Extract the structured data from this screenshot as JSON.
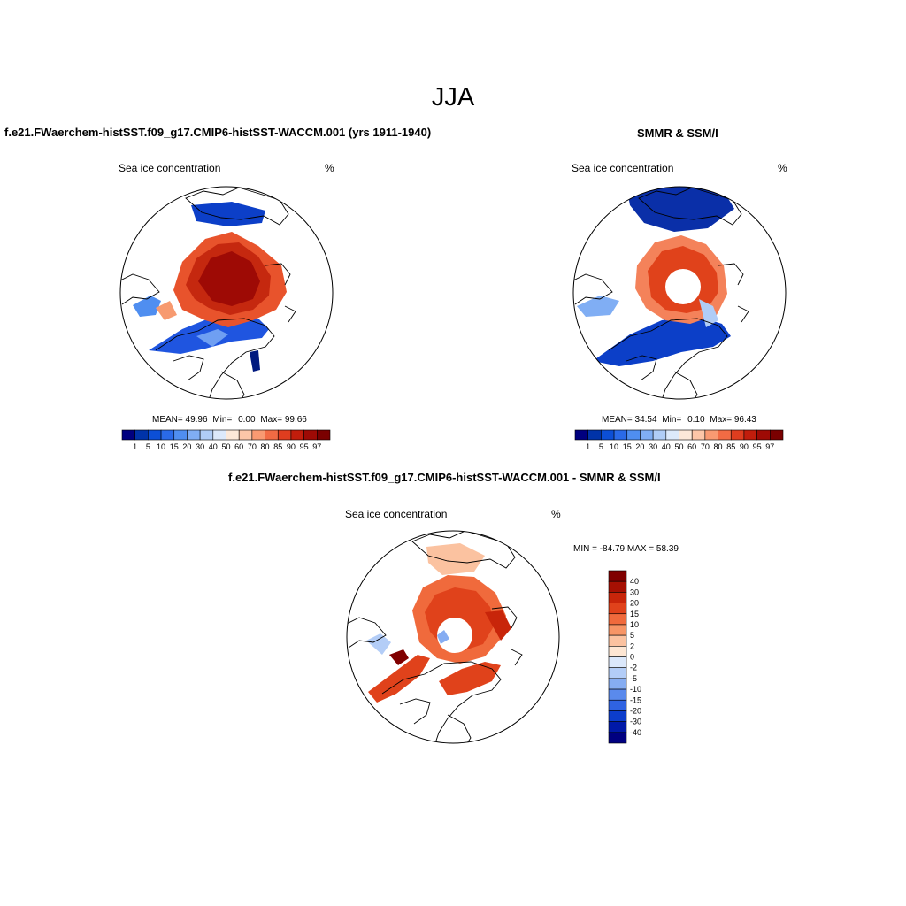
{
  "page": {
    "title": "JJA",
    "colors": {
      "land_outline": "#000000",
      "ocean": "#ffffff"
    }
  },
  "panels": [
    {
      "id": "model",
      "title": "f.e21.FWaerchem-histSST.f09_g17.CMIP6-histSST-WACCM.001 (yrs 1911-1940)",
      "left_label": "Sea ice concentration",
      "right_label": "%",
      "stats": {
        "mean_label": "MEAN=",
        "mean": "49.96",
        "min_label": "Min=",
        "min": "0.00",
        "max_label": "Max=",
        "max": "99.66"
      }
    },
    {
      "id": "obs",
      "title": "SMMR & SSM/I",
      "left_label": "Sea ice concentration",
      "right_label": "%",
      "stats": {
        "mean_label": "MEAN=",
        "mean": "34.54",
        "min_label": "Min=",
        "min": "0.10",
        "max_label": "Max=",
        "max": "96.43"
      }
    },
    {
      "id": "diff",
      "title": "f.e21.FWaerchem-histSST.f09_g17.CMIP6-histSST-WACCM.001 - SMMR & SSM/I",
      "left_label": "Sea ice concentration",
      "right_label": "%",
      "minmax": "MIN = -84.79 MAX =  58.39"
    }
  ],
  "chart_data": [
    {
      "type": "heatmap",
      "projection": "north-polar-stereographic",
      "title": "f.e21.FWaerchem-histSST.f09_g17.CMIP6-histSST-WACCM.001 (yrs 1911-1940)",
      "variable": "Sea ice concentration",
      "units": "%",
      "mean": 49.96,
      "min": 0.0,
      "max": 99.66,
      "colorbar": {
        "orientation": "horizontal",
        "levels": [
          "1",
          "5",
          "10",
          "15",
          "20",
          "30",
          "40",
          "50",
          "60",
          "70",
          "80",
          "85",
          "90",
          "95",
          "97"
        ],
        "colors": [
          "#00007f",
          "#0033a8",
          "#0c4fd6",
          "#2a6ae8",
          "#4f8ef0",
          "#80aef4",
          "#b0cdf7",
          "#dce9fb",
          "#fce8d8",
          "#fcc6a8",
          "#f99a72",
          "#f26b44",
          "#df3d1f",
          "#c11d0c",
          "#9e0a05",
          "#7a0000"
        ]
      }
    },
    {
      "type": "heatmap",
      "projection": "north-polar-stereographic",
      "title": "SMMR & SSM/I",
      "variable": "Sea ice concentration",
      "units": "%",
      "mean": 34.54,
      "min": 0.1,
      "max": 96.43,
      "colorbar": {
        "orientation": "horizontal",
        "levels": [
          "1",
          "5",
          "10",
          "15",
          "20",
          "30",
          "40",
          "50",
          "60",
          "70",
          "80",
          "85",
          "90",
          "95",
          "97"
        ],
        "colors": [
          "#00007f",
          "#0033a8",
          "#0c4fd6",
          "#2a6ae8",
          "#4f8ef0",
          "#80aef4",
          "#b0cdf7",
          "#dce9fb",
          "#fce8d8",
          "#fcc6a8",
          "#f99a72",
          "#f26b44",
          "#df3d1f",
          "#c11d0c",
          "#9e0a05",
          "#7a0000"
        ]
      }
    },
    {
      "type": "heatmap",
      "projection": "north-polar-stereographic",
      "title": "f.e21.FWaerchem-histSST.f09_g17.CMIP6-histSST-WACCM.001 - SMMR & SSM/I",
      "variable": "Sea ice concentration",
      "units": "%",
      "min": -84.79,
      "max": 58.39,
      "colorbar": {
        "orientation": "vertical",
        "levels": [
          "40",
          "30",
          "20",
          "15",
          "10",
          "5",
          "2",
          "0",
          "-2",
          "-5",
          "-10",
          "-15",
          "-20",
          "-30",
          "-40"
        ],
        "colors": [
          "#800000",
          "#a61003",
          "#c8250a",
          "#e0421b",
          "#f06a3c",
          "#f79566",
          "#fbc2a0",
          "#fde6d3",
          "#dbe8fb",
          "#b3cdf7",
          "#86adf2",
          "#5a8aec",
          "#2f63e2",
          "#0c3dcc",
          "#0019a8",
          "#000080"
        ]
      }
    }
  ]
}
